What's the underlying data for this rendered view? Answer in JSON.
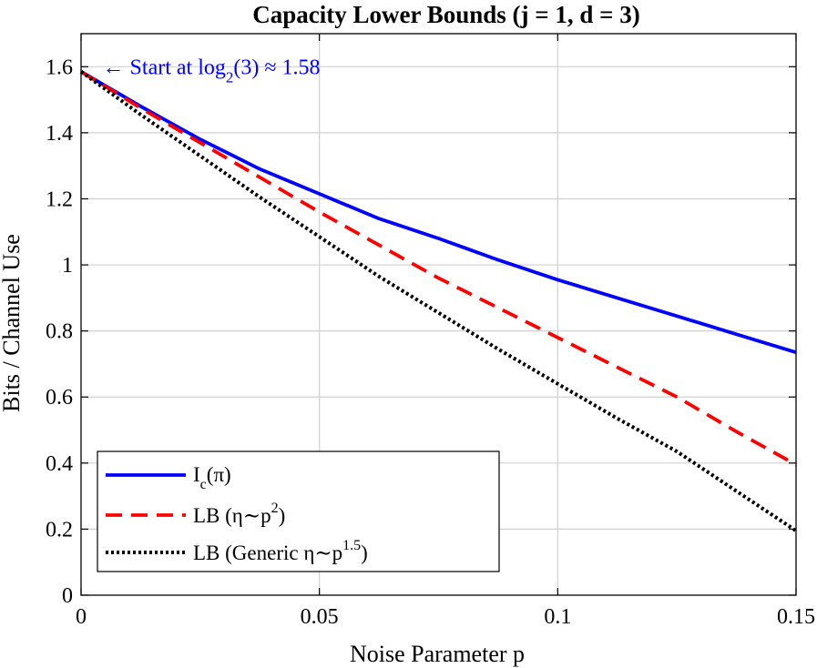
{
  "chart_data": {
    "type": "line",
    "title": "Capacity Lower Bounds (j = 1, d = 3)",
    "xlabel": "Noise Parameter p",
    "ylabel": "Bits / Channel Use",
    "xlim": [
      0,
      0.15
    ],
    "ylim": [
      0,
      1.7
    ],
    "xticks": [
      0,
      0.05,
      0.1,
      0.15
    ],
    "xtick_labels": [
      "0",
      "0.05",
      "0.1",
      "0.15"
    ],
    "yticks": [
      0,
      0.2,
      0.4,
      0.6,
      0.8,
      1,
      1.2,
      1.4,
      1.6
    ],
    "ytick_labels": [
      "0",
      "0.2",
      "0.4",
      "0.6",
      "0.8",
      "1",
      "1.2",
      "1.4",
      "1.6"
    ],
    "grid": true,
    "legend_position": "bottom-left",
    "x": [
      0,
      0.0125,
      0.025,
      0.0375,
      0.05,
      0.0625,
      0.075,
      0.0875,
      0.1,
      0.1125,
      0.125,
      0.1375,
      0.15
    ],
    "series": [
      {
        "name": "Ic(π)",
        "legend_main": "I",
        "legend_sub": "c",
        "legend_tail": "(π)",
        "color": "#0000ff",
        "style": "solid",
        "values": [
          1.585,
          1.48,
          1.38,
          1.29,
          1.215,
          1.14,
          1.08,
          1.015,
          0.955,
          0.9,
          0.845,
          0.79,
          0.735
        ]
      },
      {
        "name": "LB (η∼p²)",
        "legend_main": "LB (η∼p",
        "legend_sup": "2",
        "legend_tail": ")",
        "color": "#ff0000",
        "style": "dashed",
        "values": [
          1.585,
          1.475,
          1.37,
          1.265,
          1.16,
          1.06,
          0.96,
          0.87,
          0.78,
          0.69,
          0.6,
          0.495,
          0.395
        ]
      },
      {
        "name": "LB (Generic η∼p^1.5)",
        "legend_main": "LB (Generic η∼p",
        "legend_sup": "1.5",
        "legend_tail": ")",
        "color": "#000000",
        "style": "dotted",
        "values": [
          1.585,
          1.455,
          1.33,
          1.205,
          1.085,
          0.965,
          0.855,
          0.745,
          0.64,
          0.535,
          0.435,
          0.315,
          0.195
        ]
      }
    ],
    "annotation": {
      "text_before": "← Start at log",
      "text_sub": "2",
      "text_after": "(3) ≈ 1.58",
      "x": 0.0045,
      "y": 1.6,
      "color": "#0000ff"
    }
  }
}
